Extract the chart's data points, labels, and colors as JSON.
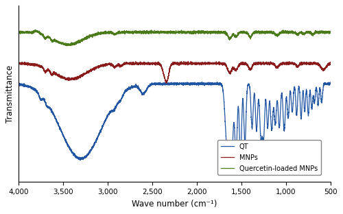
{
  "xlabel": "Wave number (cm⁻¹)",
  "ylabel": "Transmittance",
  "legend_labels": [
    "QT",
    "MNPs",
    "Quercetin-loaded MNPs"
  ],
  "line_colors": [
    "#2055a4",
    "#8b1a1a",
    "#4a7a1a"
  ],
  "background_color": "#ffffff"
}
